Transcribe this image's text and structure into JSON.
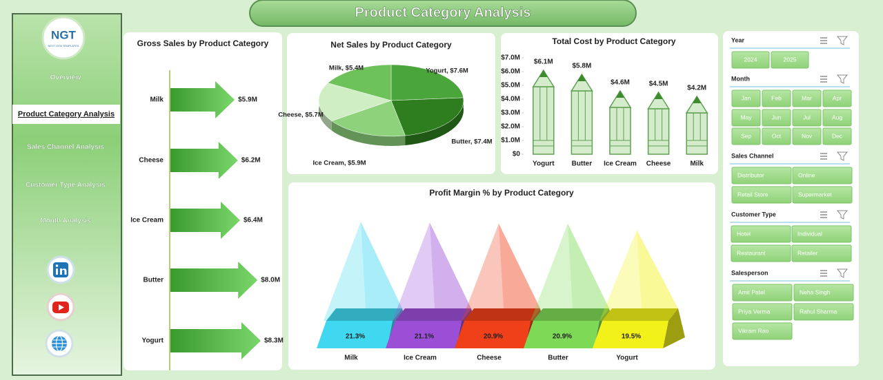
{
  "header": {
    "title": "Product Category Analysis"
  },
  "nav": {
    "logo": "NGT",
    "logo_subtitle": "NEXT GEN TEMPLATES",
    "items": [
      "Overview",
      "Product Category Analysis",
      "Sales Channel Analysis",
      "Customer Type Analysis",
      "Month Analysis"
    ],
    "active": 1
  },
  "chart_data": [
    {
      "type": "arrow-bar",
      "title": "Gross Sales by Product Category",
      "categories": [
        "Milk",
        "Cheese",
        "Ice Cream",
        "Butter",
        "Yogurt"
      ],
      "values": [
        5.9,
        6.2,
        6.4,
        8.0,
        8.3
      ],
      "value_labels": [
        "$5.9M",
        "$6.2M",
        "$6.4M",
        "$8.0M",
        "$8.3M"
      ],
      "color": "#3fa535"
    },
    {
      "type": "pie",
      "title": "Net Sales by Product Category",
      "values": [
        7.6,
        7.4,
        5.9,
        5.7,
        5.4
      ],
      "value_labels": [
        "Yogurt, $7.6M",
        "Butter, $7.4M",
        "Ice Cream, $5.9M",
        "Cheese, $5.7M",
        "Milk, $5.4M"
      ],
      "colors": [
        "#4aa53a",
        "#2e7d1f",
        "#8ed27c",
        "#d0eec4",
        "#6ec25a"
      ]
    },
    {
      "type": "pencil-bar",
      "title": "Total Cost by Product Category",
      "categories": [
        "Yogurt",
        "Butter",
        "Ice Cream",
        "Cheese",
        "Milk"
      ],
      "values": [
        6.1,
        5.8,
        4.6,
        4.5,
        4.2
      ],
      "value_labels": [
        "$6.1M",
        "$5.8M",
        "$4.6M",
        "$4.5M",
        "$4.2M"
      ],
      "ylim": [
        0,
        7
      ],
      "yticks": [
        {
          "value": 0,
          "label": "$0"
        },
        {
          "value": 1,
          "label": "$1.0M"
        },
        {
          "value": 2,
          "label": "$2.0M"
        },
        {
          "value": 3,
          "label": "$3.0M"
        },
        {
          "value": 4,
          "label": "$4.0M"
        },
        {
          "value": 5,
          "label": "$5.0M"
        },
        {
          "value": 6,
          "label": "$6.0M"
        },
        {
          "value": 7,
          "label": "$7.0M"
        }
      ],
      "color": "#d4eccb"
    },
    {
      "type": "pyramid",
      "title": "Profit Margin % by Product Category",
      "categories": [
        "Milk",
        "Ice Cream",
        "Cheese",
        "Butter",
        "Yogurt"
      ],
      "values": [
        21.3,
        21.1,
        20.9,
        20.9,
        19.5
      ],
      "value_labels": [
        "21.3%",
        "21.1%",
        "20.9%",
        "20.9%",
        "19.5%"
      ],
      "colors": [
        "#3fd8f0",
        "#9b4fd6",
        "#f0401a",
        "#7ed957",
        "#f2f21a"
      ]
    }
  ],
  "slicers": [
    {
      "title": "Year",
      "items": [
        "2024",
        "2025"
      ]
    },
    {
      "title": "Month",
      "items": [
        "Jan",
        "Feb",
        "Mar",
        "Apr",
        "May",
        "Jun",
        "Jul",
        "Aug",
        "Sep",
        "Oct",
        "Nov",
        "Dec"
      ]
    },
    {
      "title": "Sales Channel",
      "items": [
        "Distributor",
        "Online",
        "Retail Store",
        "Supermarket"
      ]
    },
    {
      "title": "Customer Type",
      "items": [
        "Hotel",
        "Individual",
        "Restaurant",
        "Retailer"
      ]
    },
    {
      "title": "Salesperson",
      "items": [
        "Amit Patel",
        "Neha Singh",
        "Priya Verma",
        "Rahul Sharma",
        "Vikram Rao"
      ]
    }
  ]
}
